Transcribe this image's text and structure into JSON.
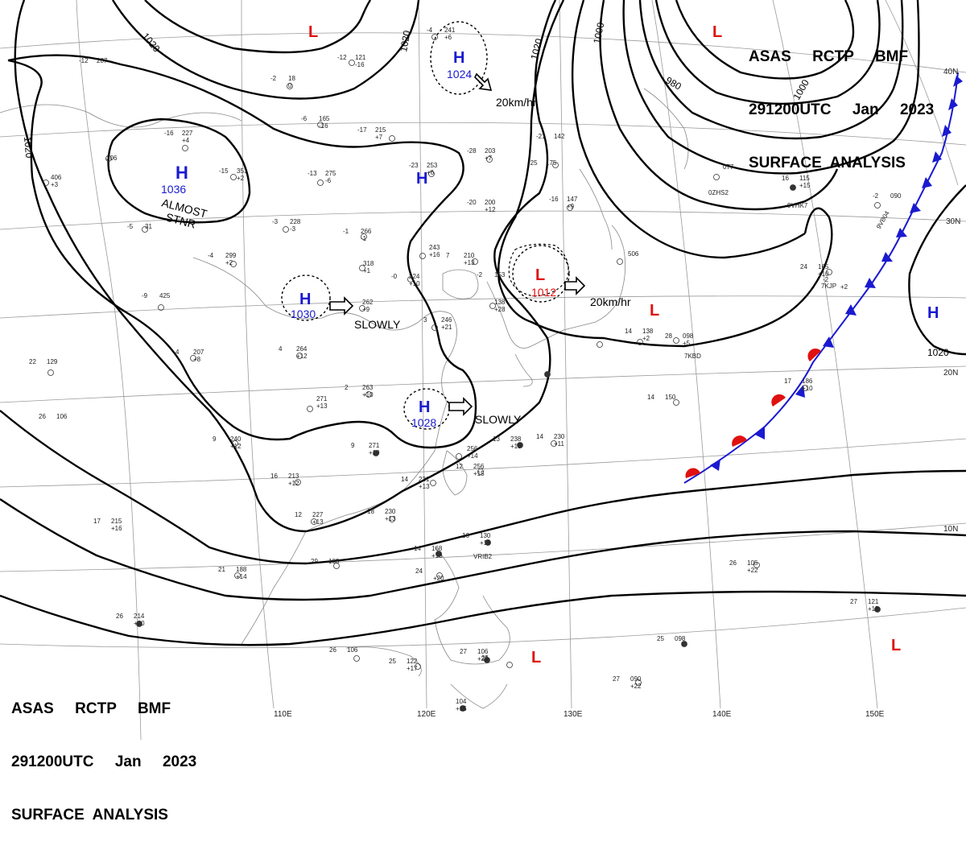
{
  "header": {
    "line1": "ASAS     RCTP     BMF",
    "line2": "291200UTC     Jan     2023",
    "line3": "SURFACE  ANALYSIS"
  },
  "lon_labels": [
    "110E",
    "120E",
    "130E",
    "140E",
    "150E"
  ],
  "lat_labels": [
    "40N",
    "30N",
    "20N",
    "10N"
  ],
  "isobar_labels": [
    "1020",
    "1020",
    "1020",
    "1020",
    "1000",
    "980",
    "1000",
    "1020"
  ],
  "systems": [
    {
      "type": "H",
      "pressure": "1036"
    },
    {
      "type": "H",
      "pressure": "1030"
    },
    {
      "type": "H",
      "pressure": "1028"
    },
    {
      "type": "H",
      "pressure": "1024"
    },
    {
      "type": "H",
      "pressure": ""
    },
    {
      "type": "H",
      "pressure": ""
    },
    {
      "type": "L",
      "pressure": "1012"
    },
    {
      "type": "L",
      "pressure": ""
    },
    {
      "type": "L",
      "pressure": ""
    },
    {
      "type": "L",
      "pressure": ""
    },
    {
      "type": "L",
      "pressure": ""
    }
  ],
  "text_labels": {
    "almost_stnr": "ALMOST",
    "stnr": "STNR",
    "slowly_1": "SLOWLY",
    "slowly_2": "SLOWLY",
    "speed_1": "20km/hr",
    "speed_2": "20km/hr"
  },
  "ship_ids": [
    "0ZHS2",
    "9VHK7",
    "9VB04",
    "7KJP",
    "7KBD",
    "VRIB2"
  ],
  "stations": [
    {
      "t": "-4",
      "p": "241",
      "d": "+6"
    },
    {
      "t": "-12",
      "p": "287",
      "d": ""
    },
    {
      "t": "-12",
      "p": "121",
      "d": "-16"
    },
    {
      "t": "-2",
      "p": "18",
      "d": "0"
    },
    {
      "t": "-6",
      "p": "165",
      "d": "-16"
    },
    {
      "t": "-16",
      "p": "227",
      "d": "+4"
    },
    {
      "t": "-15",
      "p": "351",
      "d": "+2"
    },
    {
      "t": "-13",
      "p": "275",
      "d": "-6"
    },
    {
      "t": "-17",
      "p": "215",
      "d": "+7"
    },
    {
      "t": "-23",
      "p": "253",
      "d": "+6"
    },
    {
      "t": "-28",
      "p": "203",
      "d": "+7"
    },
    {
      "t": "-25",
      "p": "175",
      "d": ""
    },
    {
      "t": "-21",
      "p": "142",
      "d": ""
    },
    {
      "t": "-20",
      "p": "200",
      "d": "+12"
    },
    {
      "t": "-16",
      "p": "147",
      "d": "+9"
    },
    {
      "t": "",
      "p": "306",
      "d": ""
    },
    {
      "t": "",
      "p": "406",
      "d": "+3"
    },
    {
      "t": "-5",
      "p": "31",
      "d": ""
    },
    {
      "t": "-3",
      "p": "228",
      "d": "-3"
    },
    {
      "t": "-1",
      "p": "266",
      "d": "-1"
    },
    {
      "t": "-4",
      "p": "299",
      "d": "+2"
    },
    {
      "t": "",
      "p": "318",
      "d": "+1"
    },
    {
      "t": "-0",
      "p": "224",
      "d": "+10"
    },
    {
      "t": "",
      "p": "243",
      "d": "+16"
    },
    {
      "t": "7",
      "p": "210",
      "d": "+13"
    },
    {
      "t": "-9",
      "p": "425",
      "d": ""
    },
    {
      "t": "",
      "p": "262",
      "d": "+9"
    },
    {
      "t": "3",
      "p": "246",
      "d": "+21"
    },
    {
      "t": "",
      "p": "138",
      "d": "+28"
    },
    {
      "t": "-2",
      "p": "153",
      "d": ""
    },
    {
      "t": "4",
      "p": "207",
      "d": "+8"
    },
    {
      "t": "4",
      "p": "264",
      "d": "+12"
    },
    {
      "t": "22",
      "p": "129",
      "d": ""
    },
    {
      "t": "2",
      "p": "263",
      "d": "+10"
    },
    {
      "t": "",
      "p": "271",
      "d": "+13"
    },
    {
      "t": "26",
      "p": "106",
      "d": ""
    },
    {
      "t": "9",
      "p": "240",
      "d": "+12"
    },
    {
      "t": "9",
      "p": "271",
      "d": "+19"
    },
    {
      "t": "",
      "p": "256",
      "d": "+14"
    },
    {
      "t": "12",
      "p": "256",
      "d": "+15"
    },
    {
      "t": "13",
      "p": "238",
      "d": "+19"
    },
    {
      "t": "14",
      "p": "230",
      "d": "+11"
    },
    {
      "t": "16",
      "p": "213",
      "d": "+12"
    },
    {
      "t": "14",
      "p": "231",
      "d": "+13"
    },
    {
      "t": "12",
      "p": "227",
      "d": "+13"
    },
    {
      "t": "18",
      "p": "230",
      "d": "+13"
    },
    {
      "t": "17",
      "p": "215",
      "d": "+16"
    },
    {
      "t": "29",
      "p": "103",
      "d": ""
    },
    {
      "t": "21",
      "p": "188",
      "d": "+14"
    },
    {
      "t": "14",
      "p": "168",
      "d": "+18"
    },
    {
      "t": "24",
      "p": "",
      "d": "+20"
    },
    {
      "t": "16",
      "p": "130",
      "d": "+18"
    },
    {
      "t": "26",
      "p": "214",
      "d": "+20"
    },
    {
      "t": "26",
      "p": "106",
      "d": ""
    },
    {
      "t": "25",
      "p": "122",
      "d": "+17"
    },
    {
      "t": "27",
      "p": "106",
      "d": "+22"
    },
    {
      "t": "25",
      "p": "",
      "d": ""
    },
    {
      "t": "",
      "p": "104",
      "d": "+15"
    },
    {
      "t": "27",
      "p": "090",
      "d": "+22"
    },
    {
      "t": "25",
      "p": "098",
      "d": ""
    },
    {
      "t": "26",
      "p": "105",
      "d": "+22"
    },
    {
      "t": "27",
      "p": "121",
      "d": "+15"
    },
    {
      "t": "28",
      "p": "098",
      "d": "+5"
    },
    {
      "t": "14",
      "p": "138",
      "d": "+2"
    },
    {
      "t": "14",
      "p": "150",
      "d": ""
    },
    {
      "t": "17",
      "p": "186",
      "d": "+10"
    },
    {
      "t": "24",
      "p": "165",
      "d": "+10"
    },
    {
      "t": "16",
      "p": "115",
      "d": "+15"
    },
    {
      "t": "",
      "p": "077",
      "d": ""
    },
    {
      "t": "-2",
      "p": "090",
      "d": ""
    },
    {
      "t": "",
      "p": "506",
      "d": ""
    },
    {
      "t": "-2",
      "p": "",
      "d": "+2"
    },
    {
      "t": "",
      "p": "111",
      "d": ""
    }
  ],
  "colors": {
    "high": "#1a1ad0",
    "low": "#e01010",
    "isobar": "#000000",
    "coast": "#888888",
    "grid": "#9a9a9a",
    "cold_front": "#1a1ad0",
    "warm_front": "#e01010"
  }
}
